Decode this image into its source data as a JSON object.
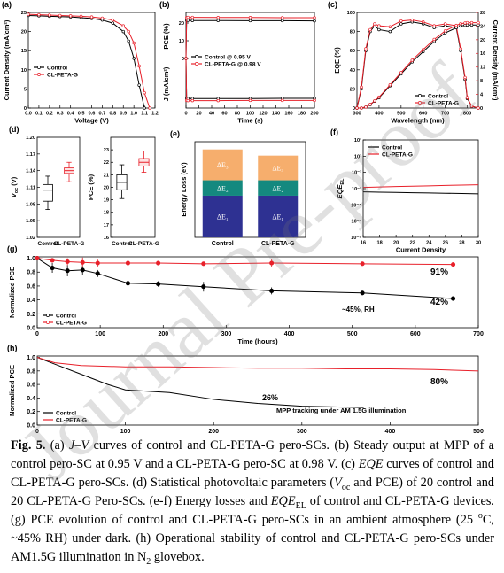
{
  "chart_data": [
    {
      "type": "line",
      "panel_label": "(a)",
      "xlabel": "Voltage (V)",
      "ylabel": "Current Density (mA/cm²)",
      "xlim": [
        0,
        1.2
      ],
      "xticks": [
        {
          "value": 0,
          "label": "0.0"
        },
        0.1,
        0.2,
        0.3,
        0.4,
        0.5,
        0.6,
        0.7,
        0.8,
        0.9,
        {
          "value": 1,
          "label": "1.0"
        },
        1.1,
        1.2
      ],
      "ylim": [
        0,
        25
      ],
      "yticks": [
        0,
        5,
        10,
        15,
        20,
        25
      ],
      "legend": "center left",
      "markers": true,
      "series": [
        {
          "name": "Control",
          "color": "#000000",
          "x": [
            0,
            0.1,
            0.2,
            0.3,
            0.4,
            0.5,
            0.6,
            0.7,
            0.8,
            0.9,
            0.95,
            1.0,
            1.05,
            1.1
          ],
          "values": [
            24.2,
            24.1,
            24.0,
            23.9,
            23.8,
            23.6,
            23.4,
            23.0,
            22.2,
            20,
            17.5,
            13,
            6,
            0
          ]
        },
        {
          "name": "CL-PETA-G",
          "color": "#e8202a",
          "x": [
            0,
            0.1,
            0.2,
            0.3,
            0.4,
            0.5,
            0.6,
            0.7,
            0.8,
            0.9,
            0.95,
            1.0,
            1.05,
            1.1,
            1.15
          ],
          "values": [
            24.5,
            24.4,
            24.3,
            24.2,
            24.1,
            24.0,
            23.8,
            23.5,
            23.0,
            21.5,
            20,
            17,
            11,
            4,
            0
          ]
        }
      ]
    },
    {
      "type": "line",
      "panel_label": "(b)",
      "xlabel": "Time (s)",
      "ylabel": "PCE (%)",
      "ylabel_lower": "J (mA/cm²)",
      "xlim": [
        0,
        200
      ],
      "xticks": [
        0,
        20,
        40,
        60,
        80,
        100,
        120,
        140,
        160,
        180,
        200
      ],
      "ylim": [
        -28,
        26
      ],
      "yticks": [
        0,
        10,
        20
      ],
      "legend": "center left",
      "markers": true,
      "x": [
        0,
        1,
        3,
        10,
        50,
        100,
        150,
        200
      ],
      "series": [
        {
          "name": "Control @ 0.95 V",
          "color": "#000000",
          "values": [
            0,
            21.6,
            21.5,
            21.4,
            21.4,
            21.3,
            21.3,
            21.2
          ]
        },
        {
          "name": "CL-PETA-G @ 0.98 V",
          "color": "#e8202a",
          "values": [
            0,
            23,
            23.2,
            23.2,
            23.1,
            23.1,
            23.0,
            23.0
          ]
        },
        {
          "color": "#000000",
          "values": [
            0,
            -22.5,
            -22.6,
            -22.6,
            -22.6,
            -22.6,
            -22.5,
            -22.5
          ]
        },
        {
          "color": "#e8202a",
          "values": [
            0,
            -23.7,
            -23.8,
            -23.8,
            -23.8,
            -23.7,
            -23.7,
            -23.7
          ]
        }
      ]
    },
    {
      "type": "line",
      "panel_label": "(c)",
      "xlabel": "Wavelength (nm)",
      "ylabel": "EQE (%)",
      "y2label": "Current Density (mA/cm²)",
      "y2color": "#e8202a",
      "xlim": [
        300,
        850
      ],
      "xticks": [
        300,
        400,
        500,
        600,
        700,
        800
      ],
      "ylim": [
        0,
        100
      ],
      "yticks": [
        0,
        20,
        40,
        60,
        80,
        100
      ],
      "y2lim": [
        0,
        28
      ],
      "y2ticks": [
        0,
        4,
        8,
        12,
        16,
        20,
        24,
        28
      ],
      "legend": "lower right",
      "markers": true,
      "x": [
        300,
        320,
        340,
        360,
        380,
        400,
        450,
        500,
        550,
        600,
        650,
        700,
        750,
        770,
        790,
        800,
        820,
        850
      ],
      "series": [
        {
          "name": "Control",
          "color": "#000000",
          "values": [
            0,
            20,
            60,
            80,
            86,
            82,
            80,
            88,
            90,
            88,
            84,
            86,
            84,
            60,
            30,
            10,
            2,
            0
          ]
        },
        {
          "name": "CL-PETA-G",
          "color": "#e8202a",
          "values": [
            0,
            22,
            62,
            82,
            88,
            86,
            85,
            91,
            92,
            90,
            86,
            88,
            86,
            62,
            32,
            11,
            2,
            0
          ]
        },
        {
          "color": "#000000",
          "axis": "y2",
          "values": [
            0,
            0,
            0.3,
            1,
            2,
            3,
            6.5,
            10,
            13.5,
            16.5,
            19.5,
            22,
            23.5,
            24,
            24.2,
            24.3,
            24.3,
            24.3
          ]
        },
        {
          "color": "#e8202a",
          "axis": "y2",
          "values": [
            0,
            0,
            0.3,
            1.1,
            2.1,
            3.2,
            6.8,
            10.4,
            14,
            17.1,
            20.1,
            22.6,
            24.2,
            24.7,
            24.9,
            25,
            25,
            25
          ]
        }
      ]
    },
    {
      "type": "box",
      "panel_label": "(d)",
      "ylabel": "V",
      "ylabel_sub": "oc",
      "ylabel_tail": " (V)",
      "categories": [
        "Control",
        "CL-PETA-G"
      ],
      "ylim": [
        1.02,
        1.2
      ],
      "yticks": [
        1.02,
        1.05,
        1.08,
        1.11,
        1.14,
        1.17,
        {
          "value": 1.2,
          "label": "1.20"
        }
      ],
      "boxes": [
        {
          "color": "#000000",
          "min": 1.07,
          "q1": 1.085,
          "median": 1.105,
          "q3": 1.115,
          "max": 1.13
        },
        {
          "color": "#e8202a",
          "min": 1.12,
          "q1": 1.135,
          "median": 1.14,
          "q3": 1.145,
          "max": 1.155
        }
      ]
    },
    {
      "type": "box",
      "ylabel": "PCE (%)",
      "categories": [
        "Control",
        "CL-PETA-G"
      ],
      "ylim": [
        16,
        24
      ],
      "yticks": [
        16,
        17,
        18,
        19,
        20,
        21,
        22,
        23
      ],
      "boxes": [
        {
          "color": "#000000",
          "min": 19.1,
          "q1": 19.8,
          "median": 20.4,
          "q3": 21,
          "max": 21.8
        },
        {
          "color": "#e8202a",
          "min": 21.2,
          "q1": 21.7,
          "median": 22,
          "q3": 22.3,
          "max": 22.9
        }
      ]
    },
    {
      "type": "stacked-bar",
      "panel_label": "(e)",
      "ylabel": "Energy Loss (eV)",
      "categories": [
        "Control",
        "CL-PETA-G"
      ],
      "ylim": [
        0,
        0.62
      ],
      "series": [
        {
          "name": "ΔE₁",
          "color": "#2e3192",
          "values": [
            0.27,
            0.27
          ]
        },
        {
          "name": "ΔE₂",
          "color": "#14897f",
          "values": [
            0.1,
            0.1
          ]
        },
        {
          "name": "ΔE₃",
          "color": "#f6ae6d",
          "values": [
            0.2,
            0.16
          ]
        }
      ]
    },
    {
      "type": "line",
      "panel_label": "(f)",
      "xlabel": "Current Density",
      "ylabel": "EQE",
      "ylabel_sub": "EL",
      "log_y": true,
      "xlim": [
        16,
        30
      ],
      "xticks": [
        16,
        18,
        20,
        22,
        24,
        26,
        28,
        30
      ],
      "ylim": [
        1e-09,
        1000
      ],
      "yticks": [
        {
          "value": 1000,
          "label": "10³"
        },
        {
          "value": 10,
          "label": "10¹"
        },
        {
          "value": 0.1,
          "label": "10⁻¹"
        },
        {
          "value": 0.001,
          "label": "10⁻³"
        },
        {
          "value": 1e-05,
          "label": "10⁻⁵"
        },
        {
          "value": 1e-07,
          "label": "10⁻⁷"
        },
        {
          "value": 1e-09,
          "label": "10⁻⁹"
        }
      ],
      "legend": "upper left",
      "x": [
        16,
        18,
        20,
        22,
        24,
        26,
        28,
        30
      ],
      "series": [
        {
          "name": "Control",
          "color": "#000000",
          "values": [
            0.0004,
            0.00037,
            0.00034,
            0.00031,
            0.00029,
            0.00027,
            0.00025,
            0.00023
          ]
        },
        {
          "name": "CL-PETA-G",
          "color": "#e8202a",
          "values": [
            0.0014,
            0.0016,
            0.0018,
            0.002,
            0.0022,
            0.0025,
            0.0027,
            0.003
          ]
        }
      ]
    },
    {
      "type": "line",
      "panel_label": "(g)",
      "xlabel": "Time (hours)",
      "ylabel": "Normalized PCE",
      "xlim": [
        0,
        700
      ],
      "xticks": [
        0,
        100,
        200,
        300,
        400,
        500,
        600,
        700
      ],
      "ylim": [
        0,
        1.02
      ],
      "yticks": [
        {
          "value": 0,
          "label": "0.0"
        },
        0.2,
        0.4,
        0.6,
        0.8,
        {
          "value": 1,
          "label": "1.0"
        }
      ],
      "legend": "lower left",
      "markers": true,
      "annotations": [
        "91%",
        "42%",
        "~45%, RH"
      ],
      "x": [
        0,
        24,
        48,
        72,
        96,
        144,
        192,
        264,
        372,
        516,
        660
      ],
      "series": [
        {
          "name": "Control",
          "color": "#000000",
          "values": [
            1,
            0.86,
            0.82,
            0.83,
            0.78,
            0.64,
            0.63,
            0.59,
            0.53,
            0.5,
            0.42
          ],
          "errors": [
            0,
            0.07,
            0.08,
            0.07,
            0.05,
            0.03,
            0.04,
            0.07,
            0.05,
            0.03,
            0.01
          ]
        },
        {
          "name": "CL-PETA-G",
          "color": "#e8202a",
          "values": [
            1,
            0.97,
            0.95,
            0.94,
            0.93,
            0.93,
            0.93,
            0.92,
            0.93,
            0.92,
            0.91
          ],
          "errors": [
            0,
            0.02,
            0.05,
            0.07,
            0.05,
            0.03,
            0.02,
            0.02,
            0.06,
            0.01,
            0.01
          ]
        }
      ]
    },
    {
      "type": "line",
      "panel_label": "(h)",
      "xlabel": "Time (hours)",
      "ylabel": "Normalized PCE",
      "xlim": [
        0,
        500
      ],
      "xticks": [
        0,
        100,
        200,
        300,
        400,
        500
      ],
      "ylim": [
        0,
        1.02
      ],
      "yticks": [
        {
          "value": 0,
          "label": "0.0"
        },
        0.2,
        0.4,
        0.6,
        0.8,
        {
          "value": 1,
          "label": "1.0"
        }
      ],
      "legend": "lower left",
      "annotations": [
        "26%",
        "80%",
        "MPP tracking under AM 1.5G illumination"
      ],
      "series": [
        {
          "name": "Control",
          "color": "#000000",
          "x": [
            0,
            20,
            50,
            80,
            100,
            150,
            200,
            250,
            300,
            370
          ],
          "values": [
            1,
            0.9,
            0.75,
            0.6,
            0.52,
            0.48,
            0.38,
            0.32,
            0.28,
            0.26
          ]
        },
        {
          "name": "CL-PETA-G",
          "color": "#e8202a",
          "x": [
            0,
            20,
            50,
            100,
            150,
            200,
            250,
            300,
            350,
            400,
            450,
            500
          ],
          "values": [
            1,
            0.92,
            0.88,
            0.86,
            0.86,
            0.85,
            0.84,
            0.84,
            0.83,
            0.83,
            0.82,
            0.8
          ]
        }
      ]
    }
  ],
  "caption": [
    {
      "t": "Fig. 5.",
      "s": "b"
    },
    {
      "t": " (a) "
    },
    {
      "t": "J",
      "s": "i"
    },
    {
      "t": "–"
    },
    {
      "t": "V",
      "s": "i"
    },
    {
      "t": " curves of control and CL-PETA-G pero-SCs. (b) Steady output at MPP of a control pero-SC at 0.95 V and a CL-PETA-G pero-SC at 0.98 V. (c) "
    },
    {
      "t": "EQE",
      "s": "i"
    },
    {
      "t": " curves of control and CL-PETA-G pero-SCs. (d) Statistical photovoltaic parameters ("
    },
    {
      "t": "V",
      "s": "i"
    },
    {
      "t": "oc",
      "s": "sub"
    },
    {
      "t": " and PCE) of 20 control and 20 CL-PETA-G Pero-SCs. (e-f) Energy losses and "
    },
    {
      "t": "EQE",
      "s": "i"
    },
    {
      "t": "EL",
      "s": "sub"
    },
    {
      "t": " of control and CL-PETA-G devices. (g) PCE evolution of control and CL-PETA-G pero-SCs in an ambient atmosphere (25 "
    },
    {
      "t": "o",
      "s": "sup"
    },
    {
      "t": "C, ~45% RH) under dark. (h) Operational stability of control and CL-PETA-G pero-SCs under AM1.5G illumination in N"
    },
    {
      "t": "2",
      "s": "sub"
    },
    {
      "t": " glovebox."
    }
  ],
  "watermark": "Journal Pre-proof"
}
